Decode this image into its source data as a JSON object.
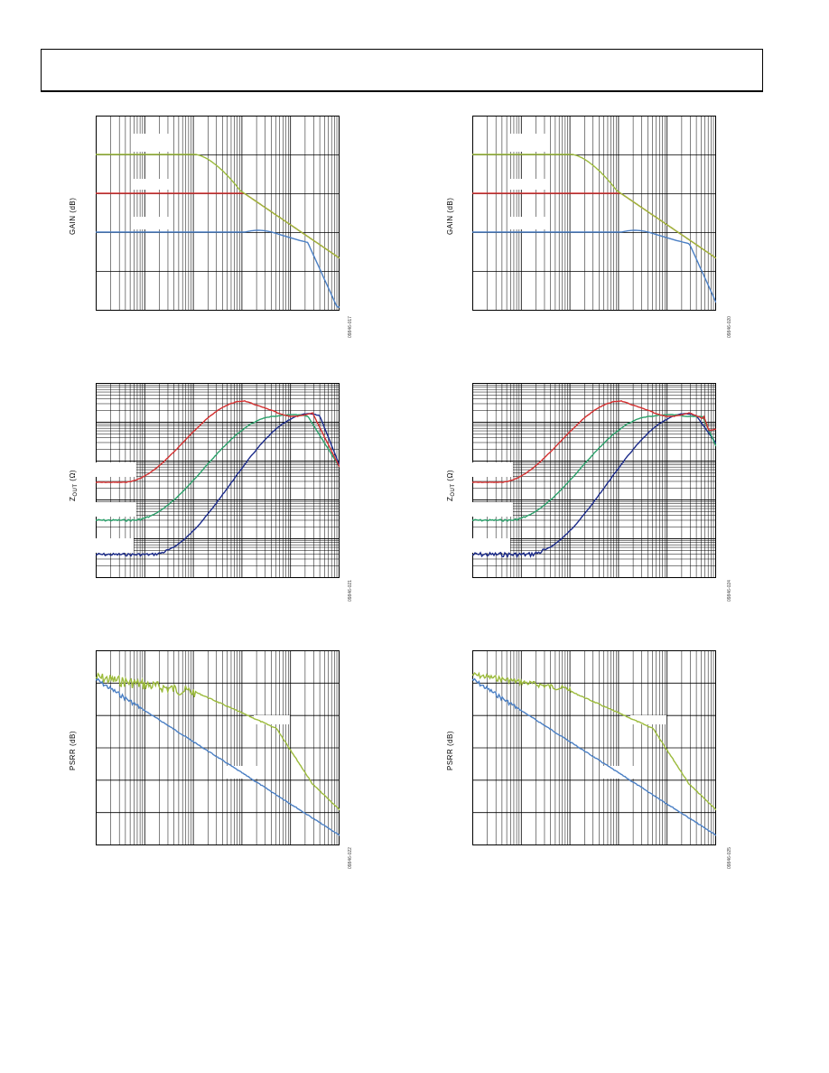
{
  "header": {
    "text": ""
  },
  "charts": [
    {
      "id": "gain-left",
      "ylabel": "GAIN (dB)",
      "figure_id": "09846-017",
      "type": "line",
      "log_x": true,
      "x_decades": 5,
      "y_divisions": 5,
      "colors": [
        "#9cbb3c",
        "#d43030",
        "#4a7fc4"
      ],
      "legend_boxes": 3
    },
    {
      "id": "gain-right",
      "ylabel": "GAIN (dB)",
      "figure_id": "09846-020",
      "type": "line",
      "log_x": true,
      "x_decades": 5,
      "y_divisions": 5,
      "colors": [
        "#9cbb3c",
        "#d43030",
        "#4a7fc4"
      ],
      "legend_boxes": 3
    },
    {
      "id": "zout-left",
      "ylabel_main": "Z",
      "ylabel_sub": "OUT",
      "ylabel_unit": " (Ω)",
      "figure_id": "09846-021",
      "type": "line",
      "log_x": true,
      "log_y": true,
      "colors": [
        "#d43030",
        "#2aa06a",
        "#1a2a8a"
      ]
    },
    {
      "id": "zout-right",
      "ylabel_main": "Z",
      "ylabel_sub": "OUT",
      "ylabel_unit": " (Ω)",
      "figure_id": "09846-024",
      "type": "line",
      "log_x": true,
      "log_y": true,
      "colors": [
        "#d43030",
        "#2aa06a",
        "#1a2a8a"
      ]
    },
    {
      "id": "psrr-left",
      "ylabel": "PSRR (dB)",
      "figure_id": "09846-022",
      "type": "line",
      "log_x": true,
      "colors": [
        "#9cbb3c",
        "#4a7fc4"
      ]
    },
    {
      "id": "psrr-right",
      "ylabel": "PSRR (dB)",
      "figure_id": "09846-025",
      "type": "line",
      "log_x": true,
      "colors": [
        "#9cbb3c",
        "#4a7fc4"
      ]
    }
  ]
}
